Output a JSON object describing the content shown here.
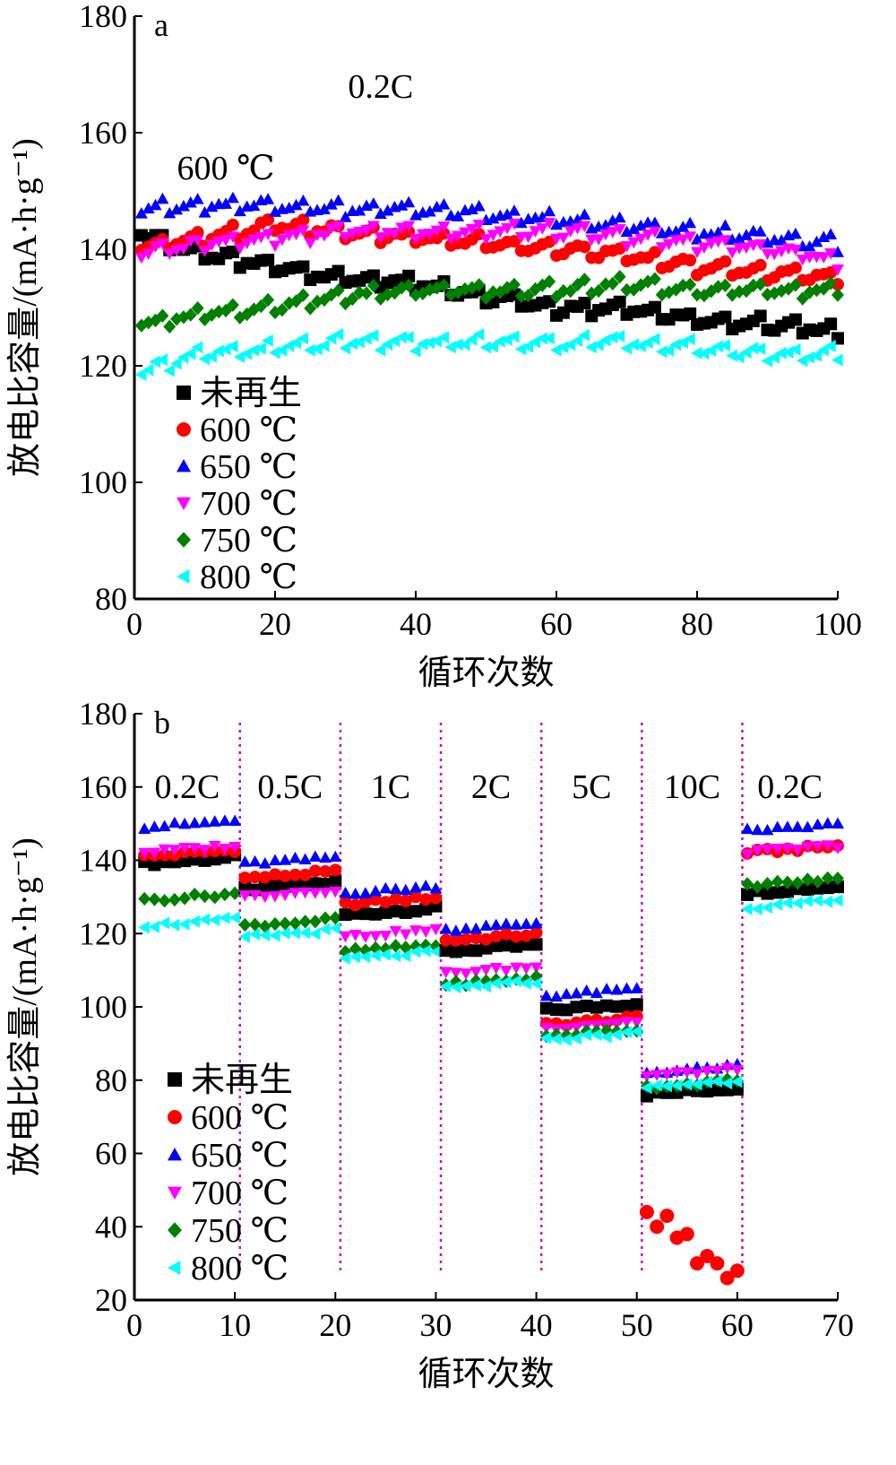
{
  "legend_labels": [
    "未再生",
    "600 ℃",
    "650 ℃",
    "700 ℃",
    "750 ℃",
    "800 ℃"
  ],
  "series_style": [
    {
      "color": "#000000",
      "marker": "square"
    },
    {
      "color": "#ff0000",
      "marker": "circle"
    },
    {
      "color": "#0000ff",
      "marker": "triangle-up"
    },
    {
      "color": "#ff00ff",
      "marker": "triangle-down"
    },
    {
      "color": "#008000",
      "marker": "diamond"
    },
    {
      "color": "#00ffff",
      "marker": "triangle-left"
    }
  ],
  "divider_color": "#cc00cc",
  "chart_data": [
    {
      "type": "line",
      "panel_label": "a",
      "xlabel": "循环次数",
      "ylabel": "放电比容量/(mA·h·g⁻¹)",
      "xlim": [
        0,
        100
      ],
      "ylim": [
        80,
        180
      ],
      "xticks": [
        0,
        20,
        40,
        60,
        80,
        100
      ],
      "yticks": [
        80,
        100,
        120,
        140,
        160,
        180
      ],
      "grid": false,
      "legend_position": "bottom-left",
      "annotations": [
        {
          "text": "0.2C",
          "x": 35,
          "y": 166
        },
        {
          "text": "600 ℃",
          "x": 13,
          "y": 152
        }
      ],
      "x": [
        0,
        10,
        20,
        30,
        40,
        50,
        60,
        70,
        80,
        90,
        100
      ],
      "series": [
        {
          "name": "未再生",
          "values": [
            143,
            139,
            137,
            135,
            134,
            132,
            130,
            130,
            128,
            127,
            126
          ]
        },
        {
          "name": "600 ℃",
          "values": [
            140,
            142,
            144,
            143,
            142,
            141,
            140,
            139,
            137,
            136,
            135
          ]
        },
        {
          "name": "650 ℃",
          "values": [
            147,
            147.5,
            147.5,
            147,
            147,
            146,
            145,
            144,
            143,
            142,
            141
          ]
        },
        {
          "name": "700 ℃",
          "values": [
            139,
            141,
            142,
            143,
            143,
            143,
            143,
            142,
            141,
            140,
            138
          ]
        },
        {
          "name": "750 ℃",
          "values": [
            127,
            129,
            130,
            132,
            133,
            133,
            133,
            134,
            133,
            133,
            133
          ]
        },
        {
          "name": "800 ℃",
          "values": [
            119,
            122,
            123,
            124,
            124,
            124,
            124,
            124,
            123,
            122,
            122
          ]
        }
      ]
    },
    {
      "type": "scatter",
      "panel_label": "b",
      "xlabel": "循环次数",
      "ylabel": "放电比容量/(mA·h·g⁻¹)",
      "xlim": [
        0,
        70
      ],
      "ylim": [
        20,
        180
      ],
      "xticks": [
        0,
        10,
        20,
        30,
        40,
        50,
        60,
        70
      ],
      "yticks": [
        20,
        40,
        60,
        80,
        100,
        120,
        140,
        160,
        180
      ],
      "grid": false,
      "legend_position": "bottom-left",
      "rate_labels": [
        "0.2C",
        "0.5C",
        "1C",
        "2C",
        "5C",
        "10C",
        "0.2C"
      ],
      "segment_boundaries": [
        10.5,
        20.5,
        30.5,
        40.5,
        50.5,
        60.5
      ],
      "segments": [
        {
          "rate": "0.2C",
          "cycles": [
            1,
            10
          ],
          "values": [
            140,
            142,
            150,
            143,
            130,
            123
          ]
        },
        {
          "rate": "0.5C",
          "cycles": [
            11,
            20
          ],
          "values": [
            133,
            136,
            140,
            131,
            123,
            120
          ]
        },
        {
          "rate": "1C",
          "cycles": [
            21,
            30
          ],
          "values": [
            126,
            129,
            132,
            120,
            116,
            114
          ]
        },
        {
          "rate": "2C",
          "cycles": [
            31,
            40
          ],
          "values": [
            116,
            119,
            122,
            110,
            107,
            106
          ]
        },
        {
          "rate": "5C",
          "cycles": [
            41,
            50
          ],
          "values": [
            100,
            96,
            104,
            95,
            93,
            92
          ]
        },
        {
          "rate": "10C",
          "cycles": [
            51,
            60
          ],
          "values": [
            77,
            null,
            83,
            82,
            79,
            79
          ]
        },
        {
          "rate": "0.2C",
          "cycles": [
            61,
            70
          ],
          "values": [
            132,
            143,
            149,
            143,
            134,
            128
          ]
        }
      ],
      "series_600C_10C_points": {
        "x": [
          51,
          52,
          53,
          54,
          55,
          56,
          57,
          58,
          59,
          60
        ],
        "y": [
          44,
          40,
          43,
          37,
          38,
          30,
          32,
          30,
          26,
          28
        ]
      }
    }
  ]
}
